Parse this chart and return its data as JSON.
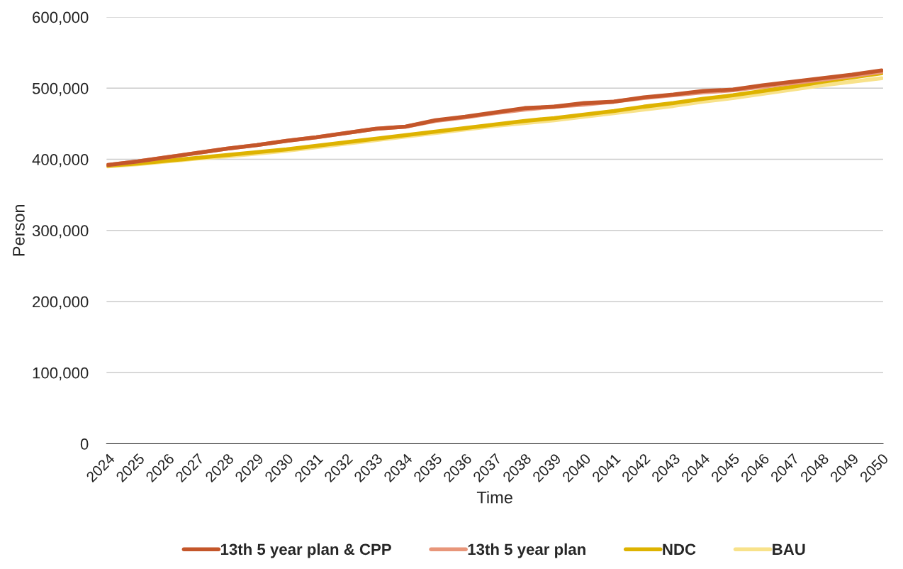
{
  "chart_data": {
    "type": "line",
    "xlabel": "Time",
    "ylabel": "Person",
    "categories": [
      "2024",
      "2025",
      "2026",
      "2027",
      "2028",
      "2029",
      "2030",
      "2031",
      "2032",
      "2033",
      "2034",
      "2035",
      "2036",
      "2037",
      "2038",
      "2039",
      "2040",
      "2041",
      "2042",
      "2043",
      "2044",
      "2045",
      "2046",
      "2047",
      "2048",
      "2049",
      "2050"
    ],
    "series": [
      {
        "name": "13th 5 year plan & CPP",
        "color": "#c4562a",
        "values": [
          392000,
          397000,
          403000,
          409000,
          415000,
          420000,
          426000,
          431000,
          437000,
          443000,
          446000,
          455000,
          460000,
          466000,
          472000,
          474000,
          479000,
          481000,
          487000,
          491000,
          496000,
          498000,
          504000,
          509000,
          514000,
          519000,
          525000
        ]
      },
      {
        "name": "13th 5 year plan",
        "color": "#e8967a",
        "values": [
          392000,
          397000,
          403000,
          409000,
          415000,
          420000,
          426000,
          431000,
          437000,
          443000,
          446000,
          454000,
          459000,
          465000,
          470000,
          474000,
          477000,
          481000,
          486000,
          490000,
          494000,
          497000,
          502000,
          507000,
          512000,
          517000,
          523000
        ]
      },
      {
        "name": "NDC",
        "color": "#deb300",
        "values": [
          391000,
          394000,
          398000,
          402000,
          406000,
          410000,
          414000,
          419000,
          424000,
          429000,
          434000,
          439000,
          444000,
          449000,
          454000,
          458000,
          463000,
          468000,
          474000,
          479000,
          485000,
          490000,
          496000,
          502000,
          509000,
          515000,
          521000
        ]
      },
      {
        "name": "BAU",
        "color": "#f8e28a",
        "values": [
          390000,
          393000,
          397000,
          401000,
          404000,
          408000,
          412000,
          417000,
          422000,
          427000,
          432000,
          437000,
          442000,
          447000,
          451000,
          455000,
          460000,
          465000,
          470000,
          475000,
          481000,
          486000,
          492000,
          498000,
          504000,
          509000,
          514000
        ]
      }
    ],
    "ylim": [
      0,
      600000
    ],
    "yticks": [
      {
        "value": 0,
        "label": "0"
      },
      {
        "value": 100000,
        "label": "100,000"
      },
      {
        "value": 200000,
        "label": "200,000"
      },
      {
        "value": 300000,
        "label": "300,000"
      },
      {
        "value": 400000,
        "label": "400,000"
      },
      {
        "value": 500000,
        "label": "500,000"
      },
      {
        "value": 600000,
        "label": "600,000"
      }
    ],
    "grid": "y",
    "legend": "bottom",
    "marker": "none",
    "line_style": "solid"
  }
}
